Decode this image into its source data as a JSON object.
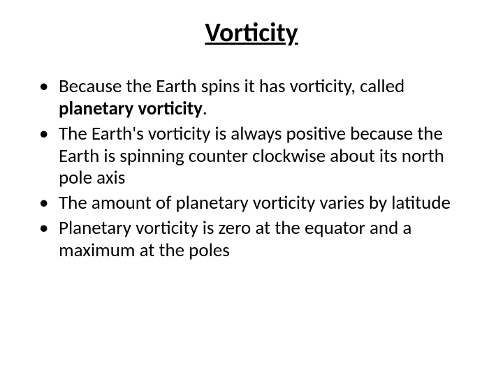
{
  "slide": {
    "title": "Vorticity",
    "title_fontsize": 38,
    "title_color": "#000000",
    "background_color": "#ffffff",
    "text_color": "#000000",
    "body_fontsize": 27,
    "bullets": [
      {
        "pre": "Because the Earth spins it has vorticity, called ",
        "bold": "planetary vorticity",
        "post": "."
      },
      {
        "pre": "The Earth's vorticity is always positive because the Earth is spinning counter clockwise about its north pole axis",
        "bold": "",
        "post": ""
      },
      {
        "pre": "The amount of planetary vorticity varies by latitude",
        "bold": "",
        "post": ""
      },
      {
        "pre": "Planetary vorticity is zero at the equator and a maximum at the poles",
        "bold": "",
        "post": ""
      }
    ]
  }
}
